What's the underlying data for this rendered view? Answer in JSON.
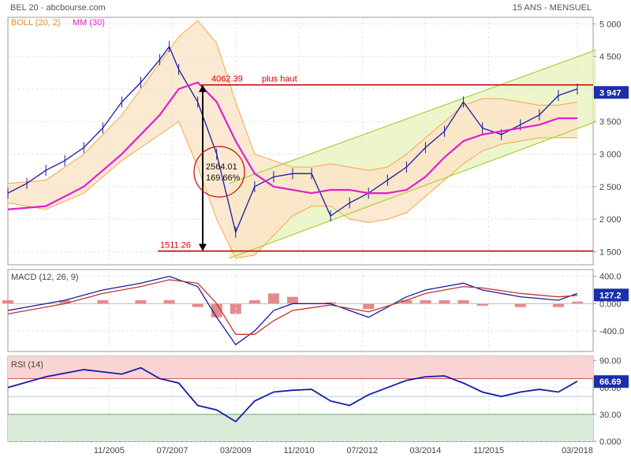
{
  "header": {
    "title": "BEL 20 - abcbourse.com",
    "period": "15 ANS - MENSUEL"
  },
  "legend": {
    "boll": "BOLL (20, 2)",
    "mm": "MM (30)"
  },
  "colors": {
    "price": "#1a1aa6",
    "ma": "#e21fcf",
    "boll_line": "#f5a64a",
    "boll_fill": "#fbe3c6",
    "channel_line": "#a8cf3a",
    "channel_fill": "#e7f3b9",
    "hline": "#cc0000",
    "macd_line": "#1a1aa6",
    "signal_line": "#c0392b",
    "hist": "#e07676",
    "rsi_line": "#1a1aa6",
    "rsi_overbought_fill": "#fad4d4",
    "rsi_oversold_fill": "#d9ecd9",
    "badge": "#1a2fa8"
  },
  "x_axis": {
    "ticks": [
      "11/2005",
      "07/2007",
      "03/2009",
      "11/2010",
      "07/2012",
      "03/2014",
      "11/2015",
      "03/2018"
    ]
  },
  "chart_data": [
    {
      "type": "line",
      "panel": "price",
      "title": "BEL 20 - abcbourse.com",
      "y_ticks": [
        "5 000",
        "4 500",
        "4 000",
        "3 500",
        "3 000",
        "2 500",
        "2 000",
        "1 500"
      ],
      "ylim": [
        1300,
        5100
      ],
      "last_value_label": "3 947",
      "series": [
        {
          "name": "BEL 20",
          "x": [
            "2003-03",
            "2003-09",
            "2004-03",
            "2004-09",
            "2005-03",
            "2005-09",
            "2006-03",
            "2006-09",
            "2007-03",
            "2007-06",
            "2007-09",
            "2008-03",
            "2008-09",
            "2009-03",
            "2009-09",
            "2010-03",
            "2010-09",
            "2011-03",
            "2011-09",
            "2012-03",
            "2012-09",
            "2013-03",
            "2013-09",
            "2014-03",
            "2014-09",
            "2015-03",
            "2015-09",
            "2016-03",
            "2016-09",
            "2017-03",
            "2017-09",
            "2018-03"
          ],
          "values": [
            2400,
            2550,
            2750,
            2900,
            3100,
            3400,
            3800,
            4100,
            4450,
            4650,
            4300,
            3800,
            3000,
            1800,
            2500,
            2650,
            2700,
            2700,
            2050,
            2250,
            2400,
            2600,
            2800,
            3100,
            3350,
            3800,
            3400,
            3300,
            3450,
            3600,
            3900,
            4000
          ]
        },
        {
          "name": "MM (30)",
          "x": [
            "2003-03",
            "2004-03",
            "2005-03",
            "2006-03",
            "2007-03",
            "2007-09",
            "2008-03",
            "2008-09",
            "2009-03",
            "2009-09",
            "2010-03",
            "2010-09",
            "2011-03",
            "2011-09",
            "2012-03",
            "2012-09",
            "2013-03",
            "2013-09",
            "2014-03",
            "2014-09",
            "2015-03",
            "2015-09",
            "2016-03",
            "2016-09",
            "2017-03",
            "2017-09",
            "2018-03"
          ],
          "values": [
            2150,
            2200,
            2500,
            3000,
            3600,
            4000,
            4100,
            3800,
            3200,
            2700,
            2500,
            2450,
            2400,
            2450,
            2450,
            2400,
            2400,
            2450,
            2650,
            2950,
            3200,
            3300,
            3350,
            3400,
            3450,
            3550,
            3550
          ]
        }
      ],
      "bollinger": {
        "name": "BOLL (20, 2)",
        "x": [
          "2003-03",
          "2004-03",
          "2005-03",
          "2006-03",
          "2007-03",
          "2007-09",
          "2008-03",
          "2008-09",
          "2009-03",
          "2009-09",
          "2010-03",
          "2010-09",
          "2011-03",
          "2011-09",
          "2012-03",
          "2012-09",
          "2013-03",
          "2013-09",
          "2014-03",
          "2014-09",
          "2015-03",
          "2015-09",
          "2016-03",
          "2016-09",
          "2017-03",
          "2017-09",
          "2018-03"
        ],
        "upper": [
          2550,
          2600,
          3000,
          3600,
          4400,
          4800,
          5050,
          4700,
          3800,
          3000,
          2900,
          2800,
          2800,
          2850,
          2800,
          2750,
          2800,
          3000,
          3250,
          3500,
          3750,
          3850,
          3850,
          3800,
          3750,
          3750,
          3800
        ],
        "lower": [
          2250,
          2150,
          2400,
          2900,
          3300,
          3500,
          2800,
          2000,
          1400,
          1450,
          1750,
          2050,
          2200,
          2200,
          2000,
          1950,
          2000,
          2100,
          2350,
          2600,
          2850,
          3050,
          3150,
          3200,
          3250,
          3250,
          3250
        ]
      },
      "channel": {
        "upper_start": {
          "x": "2009-01",
          "value": 2550
        },
        "upper_end": {
          "x": "2018-09",
          "value": 4600
        },
        "lower_start": {
          "x": "2009-01",
          "value": 1400
        },
        "lower_end": {
          "x": "2018-09",
          "value": 3500
        }
      },
      "annotations": {
        "high": {
          "value": 4062.39,
          "label": "4062.39",
          "text": "plus haut"
        },
        "low": {
          "value": 1511.26,
          "label": "1511.26"
        },
        "gain_points": "2564.01",
        "gain_percent": "169.66%"
      }
    },
    {
      "type": "line",
      "panel": "macd",
      "title": "MACD (12, 26, 9)",
      "y_ticks": [
        "400.0",
        "0.000",
        "-400.0"
      ],
      "ylim": [
        -700,
        500
      ],
      "last_value_label": "127.2",
      "series": [
        {
          "name": "MACD",
          "x": [
            "2003-03",
            "2004-09",
            "2005-09",
            "2006-09",
            "2007-06",
            "2008-03",
            "2008-09",
            "2009-03",
            "2009-09",
            "2010-03",
            "2010-09",
            "2011-09",
            "2012-09",
            "2013-09",
            "2014-03",
            "2014-09",
            "2015-03",
            "2015-09",
            "2016-09",
            "2017-09",
            "2018-03"
          ],
          "values": [
            -100,
            50,
            200,
            300,
            400,
            250,
            -200,
            -600,
            -400,
            -100,
            0,
            0,
            -200,
            100,
            200,
            250,
            300,
            200,
            100,
            50,
            150
          ]
        },
        {
          "name": "Signal",
          "x": [
            "2003-03",
            "2004-09",
            "2005-09",
            "2006-09",
            "2007-06",
            "2008-03",
            "2008-09",
            "2009-03",
            "2009-09",
            "2010-03",
            "2010-09",
            "2011-09",
            "2012-09",
            "2013-09",
            "2014-03",
            "2014-09",
            "2015-03",
            "2015-09",
            "2016-09",
            "2017-09",
            "2018-03"
          ],
          "values": [
            -150,
            0,
            150,
            250,
            350,
            300,
            0,
            -450,
            -450,
            -250,
            -100,
            -20,
            -120,
            50,
            150,
            200,
            250,
            230,
            150,
            100,
            120
          ]
        }
      ]
    },
    {
      "type": "line",
      "panel": "rsi",
      "title": "RSI (14)",
      "y_ticks": [
        "90.00",
        "60.00",
        "30.00",
        "0.000"
      ],
      "ylim": [
        0,
        95
      ],
      "overbought": 70,
      "oversold": 30,
      "last_value_label": "66.69",
      "series": [
        {
          "name": "RSI",
          "x": [
            "2003-03",
            "2004-03",
            "2005-03",
            "2006-03",
            "2006-09",
            "2007-03",
            "2007-09",
            "2008-03",
            "2008-09",
            "2009-03",
            "2009-09",
            "2010-03",
            "2010-09",
            "2011-03",
            "2011-09",
            "2012-03",
            "2012-09",
            "2013-03",
            "2013-09",
            "2014-03",
            "2014-09",
            "2015-03",
            "2015-09",
            "2016-03",
            "2016-09",
            "2017-03",
            "2017-09",
            "2018-03"
          ],
          "values": [
            60,
            72,
            80,
            75,
            82,
            70,
            65,
            40,
            35,
            22,
            45,
            55,
            57,
            58,
            45,
            40,
            52,
            60,
            68,
            72,
            73,
            65,
            55,
            50,
            55,
            58,
            55,
            67
          ]
        }
      ]
    }
  ]
}
